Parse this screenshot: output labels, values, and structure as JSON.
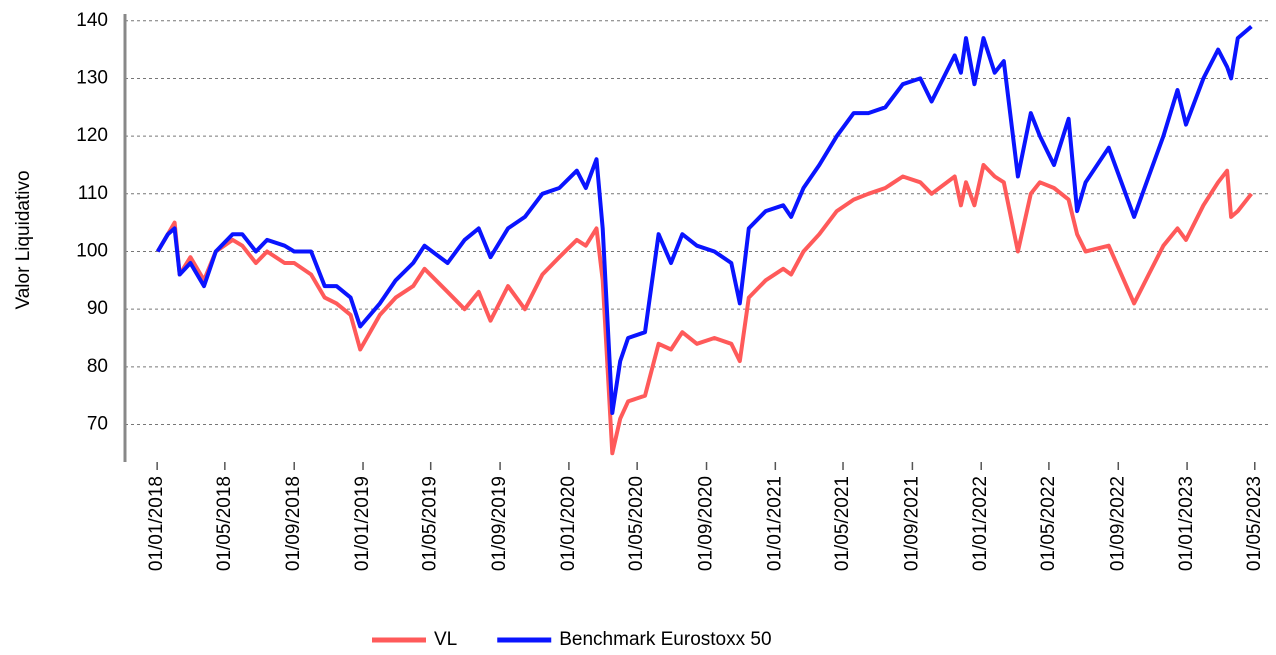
{
  "chart_data": {
    "type": "line",
    "y_label": "Valor Liquidativo",
    "ylim": [
      63.5,
      141
    ],
    "yticks": [
      70,
      80,
      90,
      100,
      110,
      120,
      130,
      140
    ],
    "grid": true,
    "xlim": [
      "2017-11-05",
      "2023-05-28"
    ],
    "xticks": [
      {
        "value": "2018-01-01",
        "label": "01/01/2018"
      },
      {
        "value": "2018-05-01",
        "label": "01/05/2018"
      },
      {
        "value": "2018-09-01",
        "label": "01/09/2018"
      },
      {
        "value": "2019-01-01",
        "label": "01/01/2019"
      },
      {
        "value": "2019-05-01",
        "label": "01/05/2019"
      },
      {
        "value": "2019-09-01",
        "label": "01/09/2019"
      },
      {
        "value": "2020-01-01",
        "label": "01/01/2020"
      },
      {
        "value": "2020-05-01",
        "label": "01/05/2020"
      },
      {
        "value": "2020-09-01",
        "label": "01/09/2020"
      },
      {
        "value": "2021-01-01",
        "label": "01/01/2021"
      },
      {
        "value": "2021-05-01",
        "label": "01/05/2021"
      },
      {
        "value": "2021-09-01",
        "label": "01/09/2021"
      },
      {
        "value": "2022-01-01",
        "label": "01/01/2022"
      },
      {
        "value": "2022-05-01",
        "label": "01/05/2022"
      },
      {
        "value": "2022-09-01",
        "label": "01/09/2022"
      },
      {
        "value": "2023-01-01",
        "label": "01/01/2023"
      },
      {
        "value": "2023-05-01",
        "label": "01/05/2023"
      }
    ],
    "x": [
      "2018-01-02",
      "2018-01-20",
      "2018-02-01",
      "2018-02-10",
      "2018-03-01",
      "2018-03-25",
      "2018-04-15",
      "2018-05-15",
      "2018-06-01",
      "2018-06-25",
      "2018-07-15",
      "2018-08-15",
      "2018-09-01",
      "2018-10-01",
      "2018-10-25",
      "2018-11-15",
      "2018-12-10",
      "2018-12-27",
      "2019-01-31",
      "2019-02-28",
      "2019-03-31",
      "2019-04-20",
      "2019-05-31",
      "2019-06-30",
      "2019-07-25",
      "2019-08-15",
      "2019-09-15",
      "2019-10-15",
      "2019-11-15",
      "2019-12-15",
      "2020-01-15",
      "2020-01-31",
      "2020-02-19",
      "2020-03-01",
      "2020-03-18",
      "2020-04-01",
      "2020-04-15",
      "2020-05-15",
      "2020-06-08",
      "2020-06-30",
      "2020-07-20",
      "2020-08-15",
      "2020-09-15",
      "2020-10-15",
      "2020-10-30",
      "2020-11-15",
      "2020-12-15",
      "2021-01-15",
      "2021-01-29",
      "2021-02-20",
      "2021-03-20",
      "2021-04-20",
      "2021-05-20",
      "2021-06-15",
      "2021-07-15",
      "2021-08-15",
      "2021-09-15",
      "2021-10-05",
      "2021-11-15",
      "2021-11-26",
      "2021-12-05",
      "2021-12-20",
      "2022-01-05",
      "2022-01-25",
      "2022-02-10",
      "2022-03-07",
      "2022-03-30",
      "2022-04-15",
      "2022-05-10",
      "2022-06-05",
      "2022-06-20",
      "2022-07-05",
      "2022-08-15",
      "2022-09-29",
      "2022-10-25",
      "2022-11-20",
      "2022-12-15",
      "2022-12-30",
      "2023-01-30",
      "2023-02-25",
      "2023-03-13",
      "2023-03-20",
      "2023-04-01",
      "2023-04-25"
    ],
    "series": [
      {
        "name": "VL",
        "color": "#ff5a5a",
        "values": [
          100,
          103,
          105,
          96,
          99,
          95,
          100,
          102,
          101,
          98,
          100,
          98,
          98,
          96,
          92,
          91,
          89,
          83,
          89,
          92,
          94,
          97,
          93,
          90,
          93,
          88,
          94,
          90,
          96,
          99,
          102,
          101,
          104,
          95,
          65,
          71,
          74,
          75,
          84,
          83,
          86,
          84,
          85,
          84,
          81,
          92,
          95,
          97,
          96,
          100,
          103,
          107,
          109,
          110,
          111,
          113,
          112,
          110,
          113,
          108,
          112,
          108,
          115,
          113,
          112,
          100,
          110,
          112,
          111,
          109,
          103,
          100,
          101,
          91,
          96,
          101,
          104,
          102,
          108,
          112,
          114,
          106,
          107,
          110
        ]
      },
      {
        "name": "Benchmark Eurostoxx 50",
        "color": "#0a14ff",
        "values": [
          100,
          103,
          104,
          96,
          98,
          94,
          100,
          103,
          103,
          100,
          102,
          101,
          100,
          100,
          94,
          94,
          92,
          87,
          91,
          95,
          98,
          101,
          98,
          102,
          104,
          99,
          104,
          106,
          110,
          111,
          114,
          111,
          116,
          104,
          72,
          81,
          85,
          86,
          103,
          98,
          103,
          101,
          100,
          98,
          91,
          104,
          107,
          108,
          106,
          111,
          115,
          120,
          124,
          124,
          125,
          129,
          130,
          126,
          134,
          131,
          137,
          129,
          137,
          131,
          133,
          113,
          124,
          120,
          115,
          123,
          107,
          112,
          118,
          106,
          113,
          120,
          128,
          122,
          130,
          135,
          132,
          130,
          137,
          139
        ]
      }
    ]
  }
}
